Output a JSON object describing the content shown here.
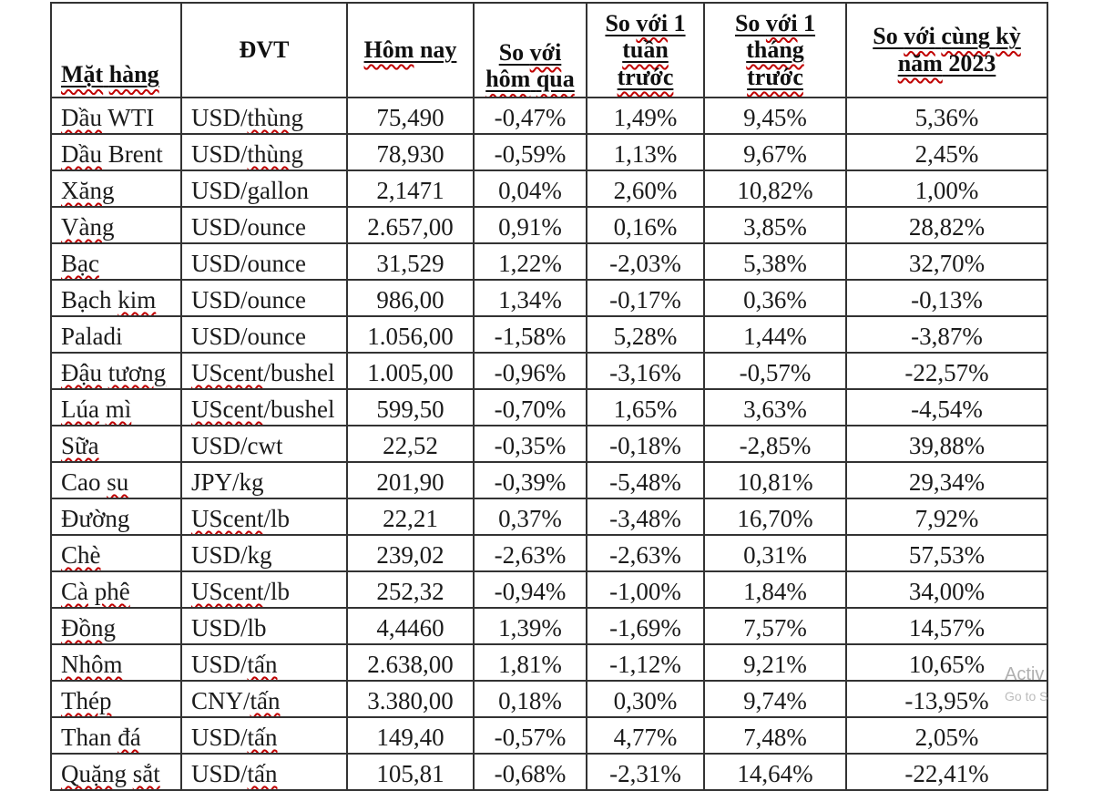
{
  "document": {
    "background": "#ffffff",
    "text_color": "#1b1b1b",
    "grid_color": "#333333",
    "spellcheck_underline_color": "#c00000"
  },
  "table": {
    "columns": [
      {
        "key": "commodity",
        "label": "Mặt hàng",
        "underline": true,
        "lines": [
          [
            {
              "t": "Mặt",
              "sq": true
            },
            {
              "t": " "
            },
            {
              "t": "hàng",
              "sq": true
            }
          ]
        ]
      },
      {
        "key": "unit",
        "label": "ĐVT",
        "underline": false,
        "lines": [
          [
            {
              "t": "ĐVT"
            }
          ]
        ]
      },
      {
        "key": "today",
        "label": "Hôm nay",
        "underline": true,
        "lines": [
          [
            {
              "t": "Hôm",
              "sq": true
            },
            {
              "t": " nay"
            }
          ]
        ]
      },
      {
        "key": "vs_yesterday",
        "label": "So với hôm qua",
        "underline": true,
        "lines": [
          [
            {
              "t": "So "
            },
            {
              "t": "với",
              "sq": true
            }
          ],
          [
            {
              "t": "hôm",
              "sq": true
            },
            {
              "t": " "
            },
            {
              "t": "qua",
              "sq": true
            }
          ]
        ]
      },
      {
        "key": "vs_1week",
        "label": "So với 1 tuần trước",
        "underline": true,
        "lines": [
          [
            {
              "t": "So "
            },
            {
              "t": "với",
              "sq": true
            },
            {
              "t": " 1"
            }
          ],
          [
            {
              "t": "tuần",
              "sq": true
            }
          ],
          [
            {
              "t": "trước",
              "sq": true
            }
          ]
        ]
      },
      {
        "key": "vs_1month",
        "label": "So với 1 tháng trước",
        "underline": true,
        "lines": [
          [
            {
              "t": "So "
            },
            {
              "t": "với",
              "sq": true
            },
            {
              "t": " 1"
            }
          ],
          [
            {
              "t": "tháng",
              "sq": true
            }
          ],
          [
            {
              "t": "trước",
              "sq": true
            }
          ]
        ]
      },
      {
        "key": "vs_2023",
        "label": "So với cùng kỳ năm 2023",
        "underline": true,
        "lines": [
          [
            {
              "t": "So "
            },
            {
              "t": "với",
              "sq": true
            },
            {
              "t": " "
            },
            {
              "t": "cùng",
              "sq": true
            },
            {
              "t": " "
            },
            {
              "t": "kỳ",
              "sq": true
            }
          ],
          [
            {
              "t": "năm",
              "sq": true
            },
            {
              "t": " 2023"
            }
          ]
        ]
      }
    ],
    "rows": [
      {
        "name": [
          {
            "t": "Dầu",
            "sq": true
          },
          {
            "t": " WTI"
          }
        ],
        "unit": [
          {
            "t": "USD/"
          },
          {
            "t": "thùng",
            "sq": true
          }
        ],
        "today": "75,490",
        "vs_yesterday": "-0,47%",
        "vs_1week": "1,49%",
        "vs_1month": "9,45%",
        "vs_2023": "5,36%"
      },
      {
        "name": [
          {
            "t": "Dầu",
            "sq": true
          },
          {
            "t": " Brent"
          }
        ],
        "unit": [
          {
            "t": "USD/"
          },
          {
            "t": "thùng",
            "sq": true
          }
        ],
        "today": "78,930",
        "vs_yesterday": "-0,59%",
        "vs_1week": "1,13%",
        "vs_1month": "9,67%",
        "vs_2023": "2,45%"
      },
      {
        "name": [
          {
            "t": "Xăng",
            "sq": true
          }
        ],
        "unit": [
          {
            "t": "USD/gallon"
          }
        ],
        "today": "2,1471",
        "vs_yesterday": "0,04%",
        "vs_1week": "2,60%",
        "vs_1month": "10,82%",
        "vs_2023": "1,00%"
      },
      {
        "name": [
          {
            "t": "Vàng",
            "sq": true
          }
        ],
        "unit": [
          {
            "t": "USD/ounce"
          }
        ],
        "today": "2.657,00",
        "vs_yesterday": "0,91%",
        "vs_1week": "0,16%",
        "vs_1month": "3,85%",
        "vs_2023": "28,82%"
      },
      {
        "name": [
          {
            "t": "Bạc",
            "sq": true
          }
        ],
        "unit": [
          {
            "t": "USD/ounce"
          }
        ],
        "today": "31,529",
        "vs_yesterday": "1,22%",
        "vs_1week": "-2,03%",
        "vs_1month": "5,38%",
        "vs_2023": "32,70%"
      },
      {
        "name": [
          {
            "t": "Bạch "
          },
          {
            "t": "kim",
            "sq": true
          }
        ],
        "unit": [
          {
            "t": "USD/ounce"
          }
        ],
        "today": "986,00",
        "vs_yesterday": "1,34%",
        "vs_1week": "-0,17%",
        "vs_1month": "0,36%",
        "vs_2023": "-0,13%"
      },
      {
        "name": [
          {
            "t": "Paladi"
          }
        ],
        "unit": [
          {
            "t": "USD/ounce"
          }
        ],
        "today": "1.056,00",
        "vs_yesterday": "-1,58%",
        "vs_1week": "5,28%",
        "vs_1month": "1,44%",
        "vs_2023": "-3,87%"
      },
      {
        "name": [
          {
            "t": "Đậu",
            "sq": true
          },
          {
            "t": " "
          },
          {
            "t": "tương",
            "sq": true
          }
        ],
        "unit": [
          {
            "t": "UScent",
            "sq": true
          },
          {
            "t": "/bushel"
          }
        ],
        "today": "1.005,00",
        "vs_yesterday": "-0,96%",
        "vs_1week": "-3,16%",
        "vs_1month": "-0,57%",
        "vs_2023": "-22,57%"
      },
      {
        "name": [
          {
            "t": "Lúa",
            "sq": true
          },
          {
            "t": " "
          },
          {
            "t": "mì",
            "sq": true
          }
        ],
        "unit": [
          {
            "t": "UScent",
            "sq": true
          },
          {
            "t": "/bushel"
          }
        ],
        "today": "599,50",
        "vs_yesterday": "-0,70%",
        "vs_1week": "1,65%",
        "vs_1month": "3,63%",
        "vs_2023": "-4,54%"
      },
      {
        "name": [
          {
            "t": "Sữa",
            "sq": true
          }
        ],
        "unit": [
          {
            "t": "USD/cwt"
          }
        ],
        "today": "22,52",
        "vs_yesterday": "-0,35%",
        "vs_1week": "-0,18%",
        "vs_1month": "-2,85%",
        "vs_2023": "39,88%"
      },
      {
        "name": [
          {
            "t": "Cao "
          },
          {
            "t": "su",
            "sq": true
          }
        ],
        "unit": [
          {
            "t": "JPY/kg"
          }
        ],
        "today": "201,90",
        "vs_yesterday": "-0,39%",
        "vs_1week": "-5,48%",
        "vs_1month": "10,81%",
        "vs_2023": "29,34%"
      },
      {
        "name": [
          {
            "t": "Đường"
          }
        ],
        "unit": [
          {
            "t": "UScent",
            "sq": true
          },
          {
            "t": "/lb"
          }
        ],
        "today": "22,21",
        "vs_yesterday": "0,37%",
        "vs_1week": "-3,48%",
        "vs_1month": "16,70%",
        "vs_2023": "7,92%"
      },
      {
        "name": [
          {
            "t": "Chè",
            "sq": true
          }
        ],
        "unit": [
          {
            "t": "USD/kg"
          }
        ],
        "today": "239,02",
        "vs_yesterday": "-2,63%",
        "vs_1week": "-2,63%",
        "vs_1month": "0,31%",
        "vs_2023": "57,53%"
      },
      {
        "name": [
          {
            "t": "Cà",
            "sq": true
          },
          {
            "t": " "
          },
          {
            "t": "phê",
            "sq": true
          }
        ],
        "unit": [
          {
            "t": "UScent",
            "sq": true
          },
          {
            "t": "/lb"
          }
        ],
        "today": "252,32",
        "vs_yesterday": "-0,94%",
        "vs_1week": "-1,00%",
        "vs_1month": "1,84%",
        "vs_2023": "34,00%"
      },
      {
        "name": [
          {
            "t": "Đồng",
            "sq": true
          }
        ],
        "unit": [
          {
            "t": "USD/lb"
          }
        ],
        "today": "4,4460",
        "vs_yesterday": "1,39%",
        "vs_1week": "-1,69%",
        "vs_1month": "7,57%",
        "vs_2023": "14,57%"
      },
      {
        "name": [
          {
            "t": "Nhôm",
            "sq": true
          }
        ],
        "unit": [
          {
            "t": "USD/"
          },
          {
            "t": "tấn",
            "sq": true
          }
        ],
        "today": "2.638,00",
        "vs_yesterday": "1,81%",
        "vs_1week": "-1,12%",
        "vs_1month": "9,21%",
        "vs_2023": "10,65%"
      },
      {
        "name": [
          {
            "t": "Thép",
            "sq": true
          }
        ],
        "unit": [
          {
            "t": "CNY/"
          },
          {
            "t": "tấn",
            "sq": true
          }
        ],
        "today": "3.380,00",
        "vs_yesterday": "0,18%",
        "vs_1week": "0,30%",
        "vs_1month": "9,74%",
        "vs_2023": "-13,95%"
      },
      {
        "name": [
          {
            "t": "Than "
          },
          {
            "t": "đá",
            "sq": true
          }
        ],
        "unit": [
          {
            "t": "USD/"
          },
          {
            "t": "tấn",
            "sq": true
          }
        ],
        "today": "149,40",
        "vs_yesterday": "-0,57%",
        "vs_1week": "4,77%",
        "vs_1month": "7,48%",
        "vs_2023": "2,05%"
      },
      {
        "name": [
          {
            "t": "Quặng",
            "sq": true
          },
          {
            "t": " "
          },
          {
            "t": "sắt",
            "sq": true
          }
        ],
        "unit": [
          {
            "t": "USD/"
          },
          {
            "t": "tấn",
            "sq": true
          }
        ],
        "today": "105,81",
        "vs_yesterday": "-0,68%",
        "vs_1week": "-2,31%",
        "vs_1month": "14,64%",
        "vs_2023": "-22,41%"
      }
    ]
  },
  "watermark": {
    "line1": "Activ",
    "line2": "Go to S"
  }
}
